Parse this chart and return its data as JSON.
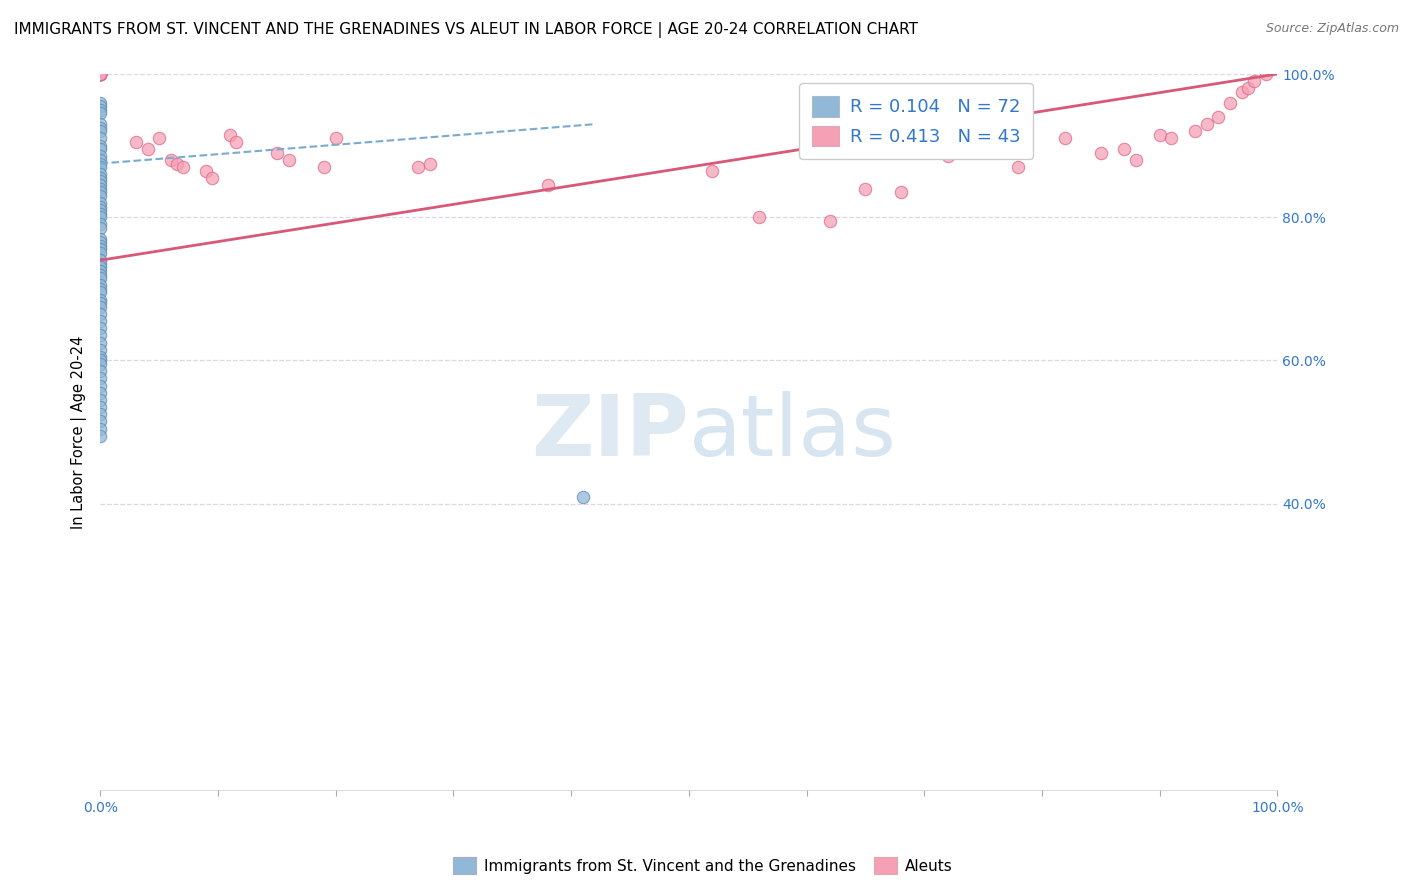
{
  "title": "IMMIGRANTS FROM ST. VINCENT AND THE GRENADINES VS ALEUT IN LABOR FORCE | AGE 20-24 CORRELATION CHART",
  "source": "Source: ZipAtlas.com",
  "ylabel": "In Labor Force | Age 20-24",
  "xlim": [
    0.0,
    1.0
  ],
  "ylim": [
    0.0,
    1.0
  ],
  "blue_color": "#92b8d8",
  "blue_edge_color": "#5a8ab8",
  "pink_color": "#f5a0b5",
  "pink_edge_color": "#e06888",
  "trend_blue_color": "#7aaad0",
  "trend_pink_color": "#d85878",
  "legend_R1": "0.104",
  "legend_N1": "72",
  "legend_R2": "0.413",
  "legend_N2": "43",
  "legend_label1": "Immigrants from St. Vincent and the Grenadines",
  "legend_label2": "Aleuts",
  "accent_color": "#3377cc",
  "grid_color": "#d8d8e8",
  "title_fontsize": 11,
  "marker_size": 80,
  "blue_scatter_x": [
    0.0,
    0.0,
    0.0,
    0.0,
    0.0,
    0.0,
    0.0,
    0.0,
    0.0,
    0.0,
    0.0,
    0.0,
    0.0,
    0.0,
    0.0,
    0.0,
    0.0,
    0.0,
    0.0,
    0.0,
    0.0,
    0.0,
    0.0,
    0.0,
    0.0,
    0.0,
    0.0,
    0.0,
    0.0,
    0.0,
    0.0,
    0.0,
    0.0,
    0.0,
    0.0,
    0.0,
    0.0,
    0.0,
    0.0,
    0.0,
    0.0,
    0.0,
    0.0,
    0.0,
    0.0,
    0.0,
    0.0,
    0.0,
    0.0,
    0.0,
    0.0,
    0.0,
    0.0,
    0.0,
    0.0,
    0.0,
    0.0,
    0.0,
    0.0,
    0.0,
    0.0,
    0.0,
    0.0,
    0.0,
    0.0,
    0.0,
    0.0,
    0.0,
    0.0,
    0.0,
    0.0,
    0.41
  ],
  "blue_scatter_y": [
    1.0,
    1.0,
    1.0,
    1.0,
    1.0,
    1.0,
    1.0,
    0.96,
    0.955,
    0.95,
    0.945,
    0.93,
    0.925,
    0.92,
    0.91,
    0.9,
    0.895,
    0.885,
    0.88,
    0.875,
    0.87,
    0.86,
    0.855,
    0.85,
    0.845,
    0.84,
    0.835,
    0.83,
    0.82,
    0.815,
    0.81,
    0.805,
    0.8,
    0.79,
    0.785,
    0.77,
    0.765,
    0.76,
    0.755,
    0.75,
    0.74,
    0.735,
    0.73,
    0.725,
    0.72,
    0.715,
    0.705,
    0.7,
    0.695,
    0.685,
    0.68,
    0.675,
    0.665,
    0.655,
    0.645,
    0.635,
    0.625,
    0.615,
    0.605,
    0.6,
    0.595,
    0.585,
    0.575,
    0.565,
    0.555,
    0.545,
    0.535,
    0.525,
    0.515,
    0.505,
    0.495,
    0.41
  ],
  "pink_scatter_x": [
    0.0,
    0.0,
    0.0,
    0.0,
    0.0,
    0.03,
    0.04,
    0.05,
    0.06,
    0.065,
    0.07,
    0.09,
    0.095,
    0.11,
    0.115,
    0.15,
    0.16,
    0.19,
    0.2,
    0.27,
    0.28,
    0.38,
    0.52,
    0.56,
    0.62,
    0.65,
    0.68,
    0.72,
    0.78,
    0.82,
    0.85,
    0.87,
    0.88,
    0.9,
    0.91,
    0.93,
    0.94,
    0.95,
    0.96,
    0.97,
    0.975,
    0.98,
    0.99
  ],
  "pink_scatter_y": [
    1.0,
    1.0,
    1.0,
    1.0,
    1.0,
    0.905,
    0.895,
    0.91,
    0.88,
    0.875,
    0.87,
    0.865,
    0.855,
    0.915,
    0.905,
    0.89,
    0.88,
    0.87,
    0.91,
    0.87,
    0.875,
    0.845,
    0.865,
    0.8,
    0.795,
    0.84,
    0.835,
    0.885,
    0.87,
    0.91,
    0.89,
    0.895,
    0.88,
    0.915,
    0.91,
    0.92,
    0.93,
    0.94,
    0.96,
    0.975,
    0.98,
    0.99,
    1.0
  ],
  "blue_trend_x": [
    0.0,
    0.42
  ],
  "blue_trend_y": [
    0.875,
    0.93
  ],
  "pink_trend_x": [
    0.0,
    1.0
  ],
  "pink_trend_y": [
    0.74,
    1.0
  ]
}
